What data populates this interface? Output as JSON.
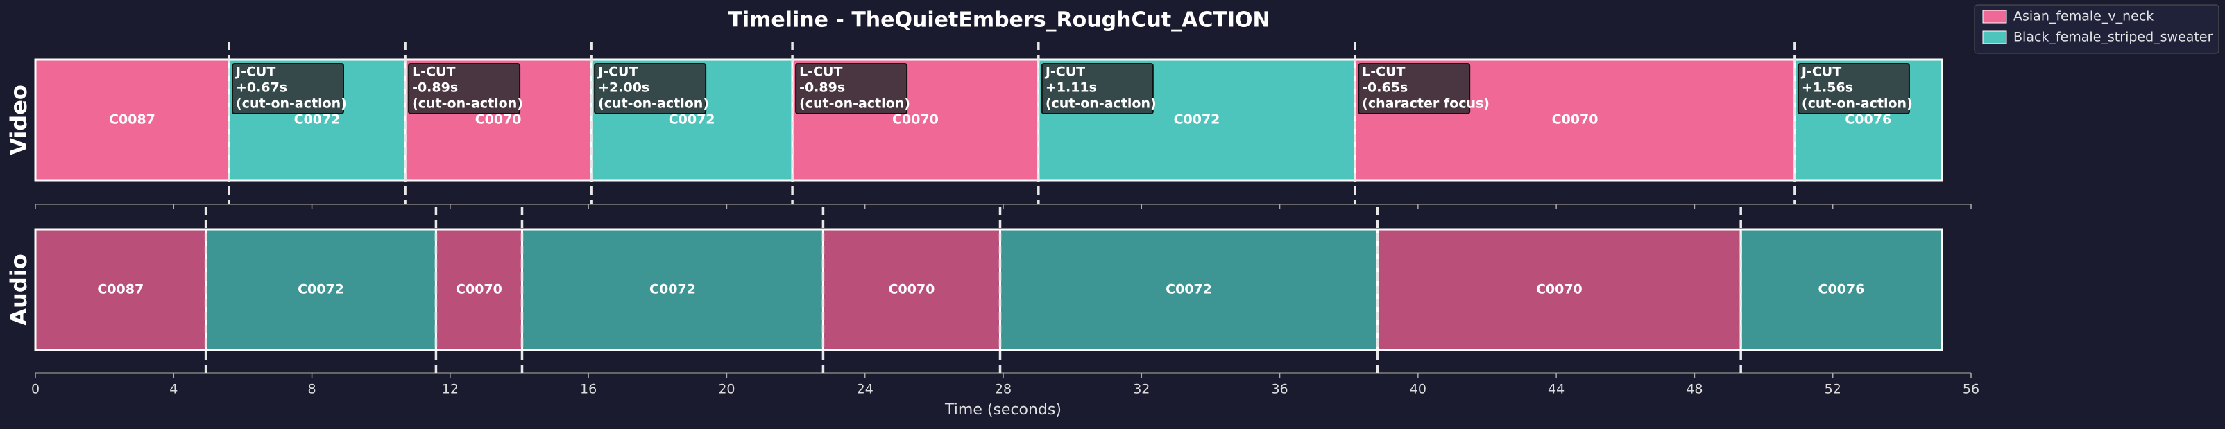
{
  "chart_data": {
    "type": "timeline",
    "title": "Timeline - TheQuietEmbers_RoughCut_ACTION",
    "xlabel": "Time (seconds)",
    "xlim": [
      0,
      56
    ],
    "xticks": [
      0,
      4,
      8,
      12,
      16,
      20,
      24,
      28,
      32,
      36,
      40,
      44,
      48,
      52,
      56
    ],
    "legend": "upper right",
    "series": [
      {
        "name": "Asian_female_v_neck",
        "color": "#f06895"
      },
      {
        "name": "Black_female_striped_sweater",
        "color": "#4dc4bc"
      }
    ],
    "tracks": [
      {
        "name": "Video",
        "clips": [
          {
            "label": "C0087",
            "start": 0,
            "end": 5.6,
            "color": "#f06895"
          },
          {
            "label": "C0072",
            "start": 5.6,
            "end": 10.7,
            "color": "#4dc4bc",
            "note": [
              "J-CUT",
              "+0.67s",
              "(cut-on-action)"
            ]
          },
          {
            "label": "C0070",
            "start": 10.7,
            "end": 16.08,
            "color": "#f06895",
            "note": [
              "L-CUT",
              "-0.89s",
              "(cut-on-action)"
            ]
          },
          {
            "label": "C0072",
            "start": 16.08,
            "end": 21.9,
            "color": "#4dc4bc",
            "note": [
              "J-CUT",
              "+2.00s",
              "(cut-on-action)"
            ]
          },
          {
            "label": "C0070",
            "start": 21.9,
            "end": 29.02,
            "color": "#f06895",
            "note": [
              "L-CUT",
              "-0.89s",
              "(cut-on-action)"
            ]
          },
          {
            "label": "C0072",
            "start": 29.02,
            "end": 38.18,
            "color": "#4dc4bc",
            "note": [
              "J-CUT",
              "+1.11s",
              "(cut-on-action)"
            ]
          },
          {
            "label": "C0070",
            "start": 38.18,
            "end": 50.9,
            "color": "#f06895",
            "note": [
              "L-CUT",
              "-0.65s",
              "(character focus)"
            ]
          },
          {
            "label": "C0076",
            "start": 50.9,
            "end": 55.15,
            "color": "#4dc4bc",
            "note": [
              "J-CUT",
              "+1.56s",
              "(cut-on-action)"
            ]
          }
        ]
      },
      {
        "name": "Audio",
        "clips": [
          {
            "label": "C0087",
            "start": 0,
            "end": 4.93,
            "color": "#ba5079"
          },
          {
            "label": "C0072",
            "start": 4.93,
            "end": 11.59,
            "color": "#3e9694"
          },
          {
            "label": "C0070",
            "start": 11.59,
            "end": 14.08,
            "color": "#ba5079"
          },
          {
            "label": "C0072",
            "start": 14.08,
            "end": 22.79,
            "color": "#3e9694"
          },
          {
            "label": "C0070",
            "start": 22.79,
            "end": 27.91,
            "color": "#ba5079"
          },
          {
            "label": "C0072",
            "start": 27.91,
            "end": 38.83,
            "color": "#3e9694"
          },
          {
            "label": "C0070",
            "start": 38.83,
            "end": 49.34,
            "color": "#ba5079"
          },
          {
            "label": "C0076",
            "start": 49.34,
            "end": 55.15,
            "color": "#3e9694"
          }
        ]
      }
    ]
  }
}
